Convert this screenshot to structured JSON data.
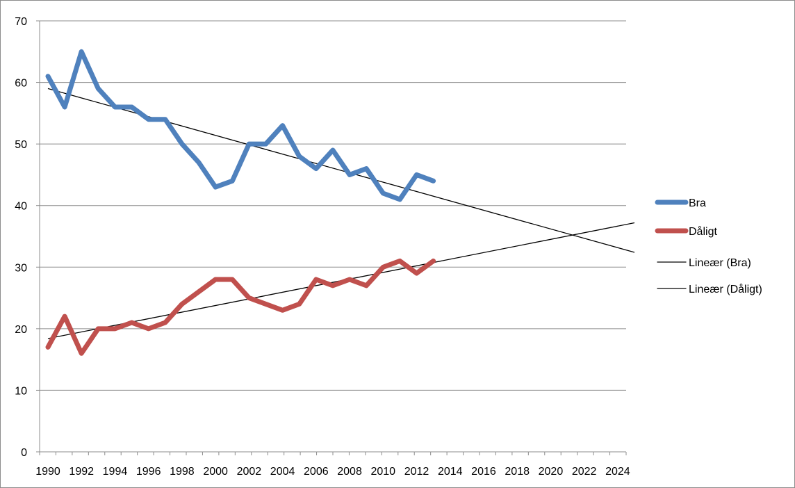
{
  "chart_data": {
    "type": "line",
    "xlabel": "",
    "ylabel": "",
    "xlim": [
      1990,
      2025
    ],
    "ylim": [
      0,
      70
    ],
    "yticks": [
      0,
      10,
      20,
      30,
      40,
      50,
      60,
      70
    ],
    "xticks": [
      1990,
      1992,
      1994,
      1996,
      1998,
      2000,
      2002,
      2004,
      2006,
      2008,
      2010,
      2012,
      2014,
      2016,
      2018,
      2020,
      2022,
      2024
    ],
    "grid": "horizontal",
    "legend_position": "right",
    "series": [
      {
        "name": "Bra",
        "color": "#4f81bd",
        "x": [
          1990,
          1991,
          1992,
          1993,
          1994,
          1995,
          1996,
          1997,
          1998,
          1999,
          2000,
          2001,
          2002,
          2003,
          2004,
          2005,
          2006,
          2007,
          2008,
          2009,
          2010,
          2011,
          2012,
          2013
        ],
        "values": [
          61,
          56,
          65,
          59,
          56,
          56,
          54,
          54,
          50,
          47,
          43,
          44,
          50,
          50,
          53,
          48,
          46,
          49,
          45,
          46,
          42,
          41,
          45,
          44
        ]
      },
      {
        "name": "Dåligt",
        "color": "#c0504d",
        "x": [
          1990,
          1991,
          1992,
          1993,
          1994,
          1995,
          1996,
          1997,
          1998,
          1999,
          2000,
          2001,
          2002,
          2003,
          2004,
          2005,
          2006,
          2007,
          2008,
          2009,
          2010,
          2011,
          2012,
          2013
        ],
        "values": [
          17,
          22,
          16,
          20,
          20,
          21,
          20,
          21,
          24,
          26,
          28,
          28,
          25,
          24,
          23,
          24,
          28,
          27,
          28,
          27,
          30,
          31,
          29,
          31
        ]
      }
    ],
    "trendlines": [
      {
        "name": "Lineær (Bra)",
        "color": "#000000",
        "x": [
          1990,
          2025
        ],
        "values": [
          59.0,
          32.4
        ]
      },
      {
        "name": "Lineær (Dåligt)",
        "color": "#000000",
        "x": [
          1990,
          2025
        ],
        "values": [
          18.4,
          37.2
        ]
      }
    ]
  }
}
